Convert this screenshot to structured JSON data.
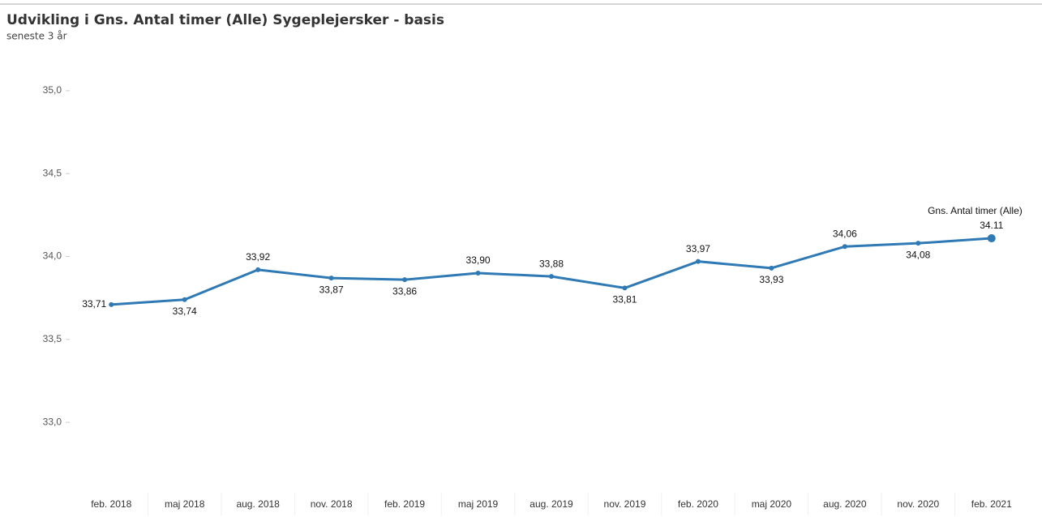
{
  "chart_data": {
    "type": "line",
    "title": "Udvikling i Gns. Antal timer (Alle) Sygeplejersker - basis",
    "subtitle": "seneste 3 år",
    "categories": [
      "feb. 2018",
      "maj 2018",
      "aug. 2018",
      "nov. 2018",
      "feb. 2019",
      "maj 2019",
      "aug. 2019",
      "nov. 2019",
      "feb. 2020",
      "maj 2020",
      "aug. 2020",
      "nov. 2020",
      "feb. 2021"
    ],
    "series": [
      {
        "name": "Gns. Antal timer (Alle)",
        "color": "#2f7ab5",
        "values": [
          33.71,
          33.74,
          33.92,
          33.87,
          33.86,
          33.9,
          33.88,
          33.81,
          33.97,
          33.93,
          34.06,
          34.08,
          34.11
        ],
        "value_labels": [
          "33,71",
          "33,74",
          "33,92",
          "33,87",
          "33,86",
          "33,90",
          "33,88",
          "33,81",
          "33,97",
          "33,93",
          "34,06",
          "34,08",
          "34.11"
        ]
      }
    ],
    "ylim": [
      32.6,
      35.2
    ],
    "yticks": [
      {
        "value": 33,
        "label": "33,0"
      },
      {
        "value": 33.5,
        "label": "33,5"
      },
      {
        "value": 34,
        "label": "34,0"
      },
      {
        "value": 34.5,
        "label": "34,5"
      },
      {
        "value": 35,
        "label": "35,0"
      }
    ]
  }
}
